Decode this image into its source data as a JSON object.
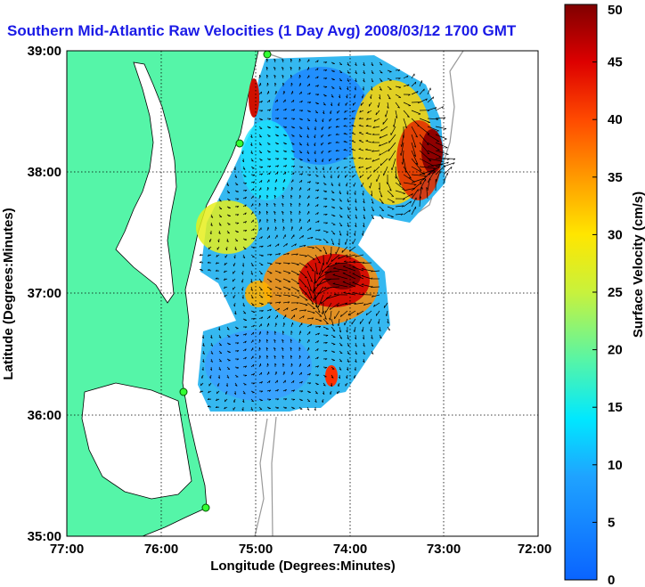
{
  "chart_data": {
    "type": "heatmap",
    "title": "Southern Mid-Atlantic Raw Velocities (1 Day Avg) 2008/03/12 1700 GMT",
    "xlabel": "Longitude (Degrees:Minutes)",
    "ylabel": "Latitude (Degrees:Minutes)",
    "xlim": [
      -77,
      -72
    ],
    "ylim": [
      35,
      39
    ],
    "x_ticks": [
      "77:00",
      "76:00",
      "75:00",
      "74:00",
      "73:00",
      "72:00"
    ],
    "y_ticks": [
      "35:00",
      "36:00",
      "37:00",
      "38:00",
      "39:00"
    ],
    "grid": true,
    "colorbar": {
      "label": "Surface Velocity (cm/s)",
      "range": [
        0,
        50
      ],
      "ticks": [
        "0",
        "5",
        "10",
        "15",
        "20",
        "25",
        "30",
        "35",
        "40",
        "45",
        "50"
      ],
      "colormap": "jet"
    },
    "land_color": "#55f5a8",
    "vectors": true
  }
}
